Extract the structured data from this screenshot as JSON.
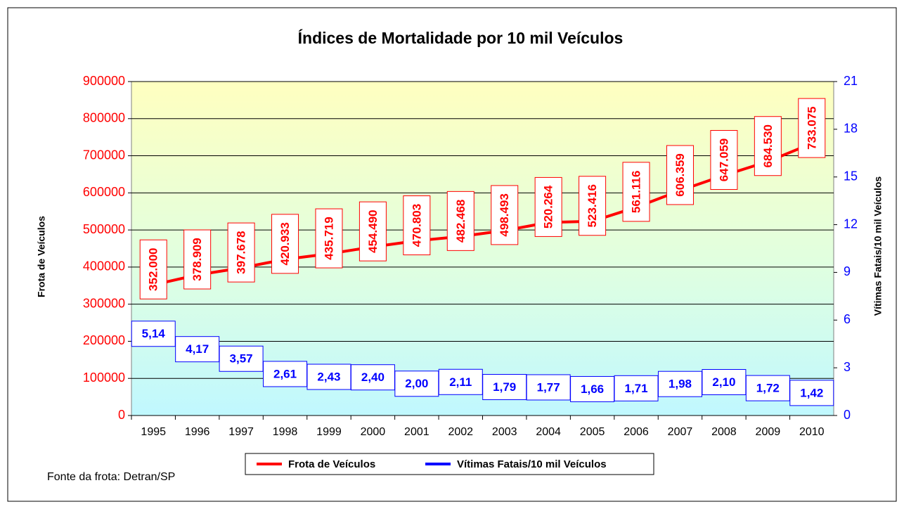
{
  "chart_data": {
    "type": "line",
    "title": "Índices de Mortalidade por 10 mil Veículos",
    "ylabel": "Frota de Veículos",
    "y2label": "Vítimas Fatais/10 mil Veículos",
    "footnote": "Fonte da frota: Detran/SP",
    "categories": [
      "1995",
      "1996",
      "1997",
      "1998",
      "1999",
      "2000",
      "2001",
      "2002",
      "2003",
      "2004",
      "2005",
      "2006",
      "2007",
      "2008",
      "2009",
      "2010"
    ],
    "series": [
      {
        "name": "Frota de Veículos",
        "color": "#ff0000",
        "axis": "y",
        "values": [
          352000,
          378909,
          397678,
          420933,
          435719,
          454490,
          470803,
          482468,
          498493,
          520264,
          523416,
          561116,
          606359,
          647059,
          684530,
          733075
        ],
        "value_labels": [
          "352.000",
          "378.909",
          "397.678",
          "420.933",
          "435.719",
          "454.490",
          "470.803",
          "482.468",
          "498.493",
          "520.264",
          "523.416",
          "561.116",
          "606.359",
          "647.059",
          "684.530",
          "733.075"
        ]
      },
      {
        "name": "Vítimas Fatais/10 mil Veículos",
        "color": "#0000ff",
        "axis": "y2",
        "values": [
          5.14,
          4.17,
          3.57,
          2.61,
          2.43,
          2.4,
          2.0,
          2.11,
          1.79,
          1.77,
          1.66,
          1.71,
          1.98,
          2.1,
          1.72,
          1.42
        ],
        "value_labels": [
          "5,14",
          "4,17",
          "3,57",
          "2,61",
          "2,43",
          "2,40",
          "2,00",
          "2,11",
          "1,79",
          "1,77",
          "1,66",
          "1,71",
          "1,98",
          "2,10",
          "1,72",
          "1,42"
        ]
      }
    ],
    "ylim": [
      0,
      900000
    ],
    "yticks": [
      0,
      100000,
      200000,
      300000,
      400000,
      500000,
      600000,
      700000,
      800000,
      900000
    ],
    "y2lim": [
      0,
      21
    ],
    "y2ticks": [
      0,
      3,
      6,
      9,
      12,
      15,
      18,
      21
    ],
    "grid": true,
    "legend": "bottom"
  }
}
